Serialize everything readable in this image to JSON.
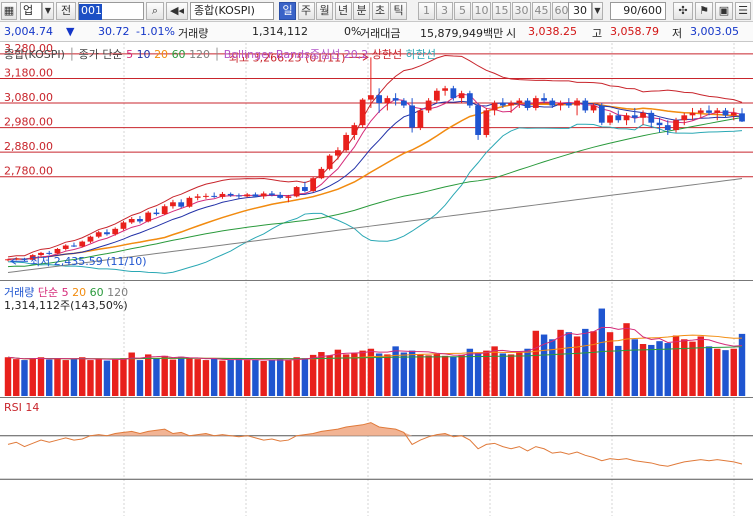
{
  "toolbar": {
    "market_select": "업",
    "market_dropdown_icon": "chevron-down-icon",
    "prev_label": "전",
    "code_value": "001",
    "name_value": "종합(KOSPI)",
    "period_buttons": [
      "일",
      "주",
      "월",
      "년",
      "분",
      "초",
      "틱"
    ],
    "active_period": "일",
    "interval_buttons": [
      "1",
      "3",
      "5",
      "10",
      "15",
      "30",
      "45",
      "60"
    ],
    "interval_value": "30",
    "count_value": "90/600"
  },
  "quote": {
    "price": "3,004.74",
    "change_arrow": "▼",
    "change": "30.72",
    "change_pct": "-1.01%",
    "volume_label": "거래량",
    "volume": "1,314,112",
    "volume_pct": "0%",
    "amount_label": "거래대금",
    "amount": "15,879,949백만",
    "open_label": "시",
    "open": "3,038.25",
    "high_label": "고",
    "high": "3,058.79",
    "low_label": "저",
    "low": "3,003.05"
  },
  "price_panel": {
    "legend_name": "종합(KOSPI)",
    "legend_ma_label": "종가 단순",
    "legend_ma_periods": [
      "5",
      "10",
      "20",
      "60",
      "120"
    ],
    "legend_bb_label": "Bollinger Bands중심선 20,2",
    "legend_upper": "상한선",
    "legend_lower": "하한선",
    "hline_labels": [
      "3,280.00",
      "3,180.00",
      "3,080.00",
      "2,980.00",
      "2,880.00",
      "2,780.00"
    ],
    "max_label": "최고 3,266.23 (01/11)",
    "min_label": "최저 2,435.59 (11/10)"
  },
  "volume_panel": {
    "legend_label": "거래량",
    "legend_ma_label": "단순",
    "legend_ma_periods": [
      "5",
      "20",
      "60",
      "120"
    ],
    "value_text": "1,314,112주(143,50%)"
  },
  "rsi_panel": {
    "legend_label": "RSI 14"
  },
  "colors": {
    "up": "#e8201c",
    "down": "#1f55d0",
    "ma5": "#d52b7a",
    "ma10": "#2332a8",
    "ma20": "#f28c0f",
    "ma60": "#2a9a3c",
    "ma120": "#808080",
    "bb_center": "#b455c8",
    "bb_upper": "#c8252c",
    "bb_lower": "#2aa8b4",
    "rsi": "#e07a3a"
  },
  "chart_data": {
    "type": "candlestick",
    "title": "종합(KOSPI)",
    "y_ticks": [
      2780,
      2880,
      2980,
      3080,
      3180,
      3280
    ],
    "ylim": [
      2380,
      3300
    ],
    "series_count": 90,
    "ohlc": [
      [
        2440,
        2446,
        2436,
        2444
      ],
      [
        2444,
        2452,
        2440,
        2447
      ],
      [
        2447,
        2450,
        2437,
        2442
      ],
      [
        2442,
        2465,
        2440,
        2461
      ],
      [
        2461,
        2474,
        2456,
        2470
      ],
      [
        2470,
        2478,
        2462,
        2468
      ],
      [
        2468,
        2490,
        2466,
        2486
      ],
      [
        2486,
        2505,
        2480,
        2500
      ],
      [
        2500,
        2512,
        2494,
        2496
      ],
      [
        2496,
        2520,
        2492,
        2516
      ],
      [
        2516,
        2540,
        2510,
        2536
      ],
      [
        2536,
        2560,
        2530,
        2554
      ],
      [
        2554,
        2566,
        2540,
        2546
      ],
      [
        2546,
        2574,
        2540,
        2568
      ],
      [
        2568,
        2600,
        2562,
        2594
      ],
      [
        2594,
        2616,
        2588,
        2608
      ],
      [
        2608,
        2620,
        2590,
        2598
      ],
      [
        2598,
        2640,
        2594,
        2634
      ],
      [
        2634,
        2650,
        2622,
        2628
      ],
      [
        2628,
        2668,
        2624,
        2660
      ],
      [
        2660,
        2686,
        2650,
        2676
      ],
      [
        2676,
        2688,
        2652,
        2658
      ],
      [
        2658,
        2700,
        2654,
        2694
      ],
      [
        2694,
        2710,
        2684,
        2700
      ],
      [
        2700,
        2712,
        2690,
        2702
      ],
      [
        2702,
        2716,
        2694,
        2698
      ],
      [
        2698,
        2718,
        2690,
        2710
      ],
      [
        2710,
        2716,
        2698,
        2704
      ],
      [
        2704,
        2712,
        2692,
        2700
      ],
      [
        2700,
        2714,
        2696,
        2708
      ],
      [
        2708,
        2716,
        2696,
        2700
      ],
      [
        2700,
        2720,
        2690,
        2712
      ],
      [
        2712,
        2722,
        2700,
        2706
      ],
      [
        2706,
        2718,
        2690,
        2694
      ],
      [
        2694,
        2706,
        2676,
        2700
      ],
      [
        2700,
        2742,
        2696,
        2738
      ],
      [
        2738,
        2760,
        2716,
        2722
      ],
      [
        2722,
        2780,
        2716,
        2774
      ],
      [
        2774,
        2820,
        2770,
        2812
      ],
      [
        2812,
        2872,
        2806,
        2866
      ],
      [
        2866,
        2900,
        2850,
        2888
      ],
      [
        2888,
        2960,
        2882,
        2950
      ],
      [
        2950,
        3000,
        2930,
        2990
      ],
      [
        2990,
        3100,
        2980,
        3094
      ],
      [
        3094,
        3266,
        3060,
        3112
      ],
      [
        3112,
        3140,
        3040,
        3080
      ],
      [
        3080,
        3110,
        3050,
        3100
      ],
      [
        3100,
        3120,
        3070,
        3090
      ],
      [
        3090,
        3100,
        3060,
        3070
      ],
      [
        3070,
        3100,
        2960,
        2980
      ],
      [
        2980,
        3060,
        2970,
        3050
      ],
      [
        3050,
        3100,
        3040,
        3090
      ],
      [
        3090,
        3140,
        3080,
        3130
      ],
      [
        3130,
        3150,
        3110,
        3140
      ],
      [
        3140,
        3150,
        3090,
        3100
      ],
      [
        3100,
        3130,
        3080,
        3120
      ],
      [
        3120,
        3130,
        3060,
        3070
      ],
      [
        3070,
        3080,
        2930,
        2950
      ],
      [
        2950,
        3060,
        2940,
        3050
      ],
      [
        3050,
        3090,
        3030,
        3080
      ],
      [
        3080,
        3100,
        3060,
        3070
      ],
      [
        3070,
        3090,
        3040,
        3080
      ],
      [
        3080,
        3100,
        3060,
        3090
      ],
      [
        3090,
        3100,
        3050,
        3060
      ],
      [
        3060,
        3110,
        3050,
        3100
      ],
      [
        3100,
        3120,
        3080,
        3090
      ],
      [
        3090,
        3100,
        3060,
        3070
      ],
      [
        3070,
        3090,
        3050,
        3080
      ],
      [
        3080,
        3100,
        3060,
        3070
      ],
      [
        3070,
        3100,
        3030,
        3090
      ],
      [
        3090,
        3100,
        3040,
        3050
      ],
      [
        3050,
        3080,
        3040,
        3070
      ],
      [
        3070,
        3080,
        2990,
        3000
      ],
      [
        3000,
        3040,
        2990,
        3030
      ],
      [
        3030,
        3050,
        3000,
        3010
      ],
      [
        3010,
        3040,
        2990,
        3030
      ],
      [
        3030,
        3060,
        3000,
        3020
      ],
      [
        3020,
        3050,
        2990,
        3040
      ],
      [
        3040,
        3050,
        2980,
        3000
      ],
      [
        3000,
        3020,
        2960,
        2990
      ],
      [
        2990,
        3010,
        2950,
        2970
      ],
      [
        2970,
        3020,
        2960,
        3010
      ],
      [
        3010,
        3040,
        2990,
        3030
      ],
      [
        3030,
        3060,
        3010,
        3040
      ],
      [
        3040,
        3060,
        3020,
        3050
      ],
      [
        3050,
        3070,
        3030,
        3040
      ],
      [
        3040,
        3060,
        3010,
        3050
      ],
      [
        3050,
        3060,
        3020,
        3030
      ],
      [
        3030,
        3060,
        3010,
        3040
      ],
      [
        3038,
        3059,
        3003,
        3005
      ]
    ],
    "volume_ylim": [
      0,
      2200000
    ],
    "volume": [
      820000,
      780000,
      760000,
      800000,
      820000,
      770000,
      800000,
      760000,
      790000,
      820000,
      760000,
      780000,
      750000,
      770000,
      800000,
      920000,
      760000,
      880000,
      800000,
      850000,
      770000,
      830000,
      800000,
      780000,
      760000,
      790000,
      750000,
      770000,
      780000,
      760000,
      770000,
      740000,
      760000,
      780000,
      750000,
      820000,
      800000,
      870000,
      930000,
      860000,
      980000,
      880000,
      900000,
      960000,
      1000000,
      900000,
      880000,
      1050000,
      920000,
      960000,
      880000,
      860000,
      900000,
      850000,
      830000,
      870000,
      1000000,
      920000,
      960000,
      1050000,
      900000,
      880000,
      920000,
      1000000,
      1380000,
      1300000,
      1200000,
      1400000,
      1350000,
      1260000,
      1420000,
      1370000,
      1850000,
      1350000,
      1060000,
      1540000,
      1200000,
      1100000,
      1080000,
      1160000,
      1120000,
      1280000,
      1200000,
      1150000,
      1260000,
      1050000,
      1000000,
      970000,
      1000000,
      1314112
    ],
    "rsi_ylim": [
      0,
      100
    ],
    "rsi": [
      62,
      64,
      60,
      63,
      66,
      64,
      66,
      68,
      66,
      67,
      70,
      71,
      70,
      72,
      73,
      74,
      72,
      74,
      75,
      76,
      72,
      73,
      70,
      71,
      72,
      70,
      71,
      70,
      69,
      70,
      68,
      66,
      67,
      65,
      66,
      70,
      71,
      72,
      74,
      75,
      76,
      78,
      79,
      80,
      82,
      78,
      77,
      76,
      73,
      62,
      66,
      69,
      71,
      72,
      69,
      70,
      66,
      58,
      62,
      63,
      60,
      58,
      60,
      56,
      60,
      58,
      54,
      55,
      53,
      55,
      52,
      50,
      47,
      49,
      48,
      49,
      47,
      46,
      45,
      43,
      42,
      44,
      46,
      47,
      48,
      47,
      48,
      47,
      46,
      44
    ]
  }
}
